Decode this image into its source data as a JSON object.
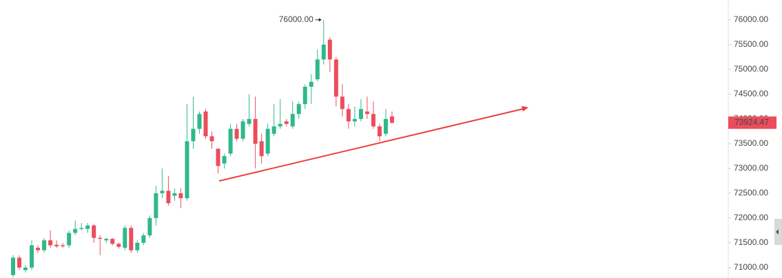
{
  "chart_data": {
    "type": "candlestick",
    "open": [
      70850,
      71200,
      70950,
      71000,
      71400,
      71350,
      71550,
      71460,
      71450,
      71450,
      71700,
      71780,
      71780,
      71850,
      71600,
      71550,
      71580,
      71480,
      71400,
      71800,
      71350,
      71500,
      71650,
      72000,
      72500,
      72550,
      72450,
      72500,
      72400,
      73550,
      73800,
      74150,
      73650,
      73400,
      73100,
      73300,
      73800,
      73600,
      73900,
      74000,
      73550,
      73300,
      73700,
      73850,
      73950,
      73850,
      74100,
      74300,
      74650,
      74800,
      75200,
      75600,
      75200,
      74450,
      74200,
      73950,
      74000,
      74150,
      74100,
      73850,
      73700,
      74050
    ],
    "high": [
      71250,
      71250,
      71050,
      71550,
      71450,
      71600,
      71750,
      71550,
      71500,
      71750,
      71950,
      71900,
      71900,
      71880,
      71650,
      71600,
      71600,
      71500,
      71850,
      71850,
      71550,
      71700,
      72050,
      72650,
      73000,
      72850,
      72600,
      72600,
      74300,
      74450,
      74150,
      74200,
      73750,
      73400,
      73300,
      73900,
      73900,
      74000,
      74500,
      74450,
      73700,
      73900,
      74300,
      74400,
      74000,
      74350,
      74350,
      74700,
      74900,
      75400,
      76000,
      75650,
      75250,
      74700,
      74300,
      74250,
      74400,
      74450,
      74350,
      73900,
      74200,
      74150
    ],
    "low": [
      70800,
      70950,
      70900,
      70950,
      71300,
      71300,
      71400,
      71400,
      71400,
      71400,
      71650,
      71750,
      71700,
      71500,
      71250,
      71500,
      71450,
      71380,
      71350,
      71300,
      71300,
      71450,
      71600,
      71850,
      72400,
      72250,
      72350,
      72200,
      72350,
      73400,
      73700,
      73600,
      73400,
      72900,
      73000,
      73250,
      73550,
      73550,
      73850,
      73000,
      73100,
      73250,
      73650,
      73800,
      73850,
      73800,
      74000,
      74200,
      74300,
      74750,
      75100,
      74950,
      74250,
      74050,
      73800,
      73850,
      73950,
      74000,
      73800,
      73550,
      73650,
      73900
    ],
    "close": [
      71200,
      71000,
      71000,
      71450,
      71350,
      71550,
      71450,
      71430,
      71430,
      71700,
      71780,
      71800,
      71850,
      71600,
      71580,
      71580,
      71480,
      71420,
      71800,
      71350,
      71500,
      71650,
      72000,
      72500,
      72550,
      72300,
      72500,
      72400,
      73550,
      73800,
      74100,
      73650,
      73550,
      73050,
      73250,
      73800,
      73600,
      73950,
      74000,
      73500,
      73250,
      73800,
      73850,
      73900,
      73900,
      74100,
      74300,
      74650,
      74750,
      75200,
      75500,
      75200,
      74450,
      74200,
      73950,
      74000,
      74200,
      74100,
      73850,
      73650,
      74000,
      73924.47
    ],
    "up_color": "#2fb88b",
    "down_color": "#eb4d5c",
    "ylim": [
      70790,
      76400
    ],
    "yticks": [
      {
        "value": 71000,
        "label": "71000.00"
      },
      {
        "value": 71500,
        "label": "71500.00"
      },
      {
        "value": 72000,
        "label": "72000.00"
      },
      {
        "value": 72500,
        "label": "72500.00"
      },
      {
        "value": 73000,
        "label": "73000.00"
      },
      {
        "value": 73500,
        "label": "73500.00"
      },
      {
        "value": 74000,
        "label": "74000.00"
      },
      {
        "value": 74500,
        "label": "74500.00"
      },
      {
        "value": 75000,
        "label": "75000.00"
      },
      {
        "value": 75500,
        "label": "75500.00"
      },
      {
        "value": 76000,
        "label": "76000.00"
      }
    ],
    "last_price": 73924.47,
    "high_marker": {
      "value": 76000,
      "label": "76000.00"
    }
  }
}
